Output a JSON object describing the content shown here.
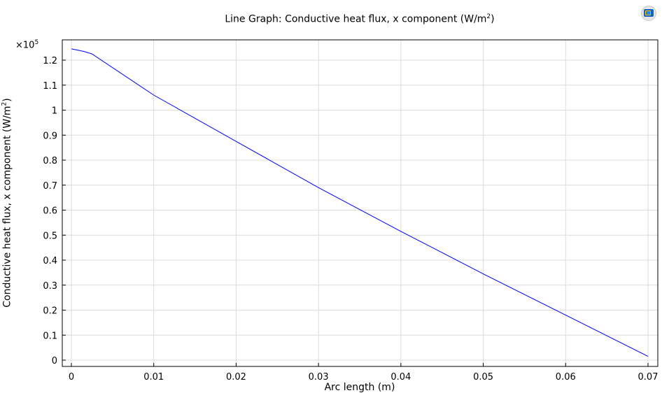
{
  "chart_data": {
    "type": "line",
    "title": "Line Graph: Conductive heat flux, x component (W/m",
    "title_sup": "2",
    "title_end": ")",
    "xlabel": "Arc length (m)",
    "ylabel": "Conductive heat flux, x component (W/m",
    "ylabel_sup": "2",
    "ylabel_end": ")",
    "y_multiplier": "×10",
    "y_multiplier_exp": "5",
    "xlim": [
      0,
      0.07
    ],
    "ylim": [
      0,
      1.2
    ],
    "x_ticks": [
      "0",
      "0.01",
      "0.02",
      "0.03",
      "0.04",
      "0.05",
      "0.06",
      "0.07"
    ],
    "y_ticks": [
      "0",
      "0.1",
      "0.2",
      "0.3",
      "0.4",
      "0.5",
      "0.6",
      "0.7",
      "0.8",
      "0.9",
      "1",
      "1.1",
      "1.2"
    ],
    "grid": true,
    "series": [
      {
        "color": "#0000ff",
        "x": [
          0,
          0.0015,
          0.0025,
          0.01,
          0.02,
          0.03,
          0.04,
          0.05,
          0.06,
          0.07
        ],
        "y": [
          1.245,
          1.235,
          1.225,
          1.06,
          0.875,
          0.69,
          0.515,
          0.345,
          0.18,
          0.015
        ]
      }
    ]
  },
  "logo_icon": "comsol-logo-icon"
}
